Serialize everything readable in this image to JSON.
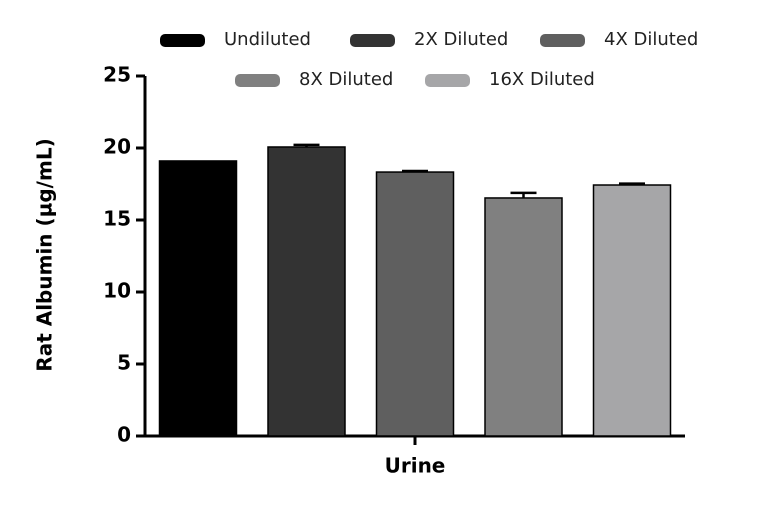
{
  "chart_data": {
    "type": "bar",
    "y_label": "Rat Albumin (µg/mL)",
    "categories": [
      "Urine"
    ],
    "series": [
      {
        "name": "Undiluted",
        "color": "#000000",
        "values": [
          19.1
        ]
      },
      {
        "name": "2X Diluted",
        "color": "#333333",
        "values": [
          20.07
        ],
        "errors": [
          0.15
        ]
      },
      {
        "name": "4X Diluted",
        "color": "#5f5f5f",
        "values": [
          18.33
        ],
        "errors": [
          0.07
        ]
      },
      {
        "name": "8X Diluted",
        "color": "#808080",
        "values": [
          16.53
        ],
        "errors": [
          0.35
        ]
      },
      {
        "name": "16X Diluted",
        "color": "#a6a6a8",
        "values": [
          17.43
        ],
        "errors": [
          0.1
        ]
      }
    ],
    "ylim": [
      0,
      25
    ],
    "yticks": [
      0,
      5,
      10,
      15,
      20,
      25
    ]
  }
}
